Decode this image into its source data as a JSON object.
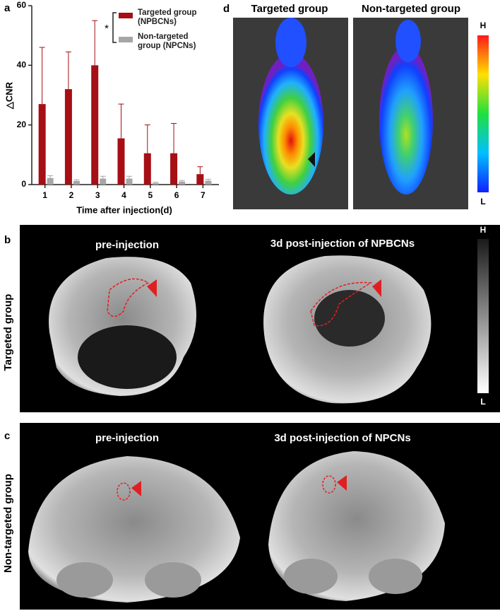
{
  "chart_data": {
    "type": "bar",
    "y_label": "△CNR",
    "x_label": "Time after injection(d)",
    "annotation": "*",
    "categories": [
      "1",
      "2",
      "3",
      "4",
      "5",
      "6",
      "7"
    ],
    "series": [
      {
        "name": "Targeted group (NPBCNs)",
        "color": "#a50f15",
        "values": [
          27,
          32,
          40,
          15.5,
          10.5,
          10.5,
          3.5
        ],
        "errors": [
          19,
          12.5,
          15,
          11.5,
          9.5,
          10,
          2.5
        ]
      },
      {
        "name": "Non-targeted group (NPCNs)",
        "color": "#a6a6a6",
        "values": [
          2.2,
          1.2,
          2,
          2,
          0.5,
          1,
          1.3
        ],
        "errors": [
          0.8,
          0.4,
          0.8,
          0.8,
          0.3,
          0.4,
          0.5
        ]
      }
    ],
    "ylim": [
      0,
      60
    ],
    "yticks": [
      0,
      20,
      40,
      60
    ]
  },
  "panel_labels": [
    "a",
    "b",
    "c",
    "d"
  ],
  "bioluminescence": {
    "titles": [
      "Targeted group",
      "Non-targeted group"
    ],
    "scale": {
      "high": "H",
      "low": "L"
    }
  },
  "mri_targeted": {
    "row_label": "Targeted group",
    "titles": [
      "pre-injection",
      "3d post-injection of NPBCNs"
    ],
    "scale": {
      "high": "H",
      "low": "L"
    }
  },
  "mri_nontargeted": {
    "row_label": "Non-targeted group",
    "titles": [
      "pre-injection",
      "3d post-injection of NPCNs"
    ]
  }
}
